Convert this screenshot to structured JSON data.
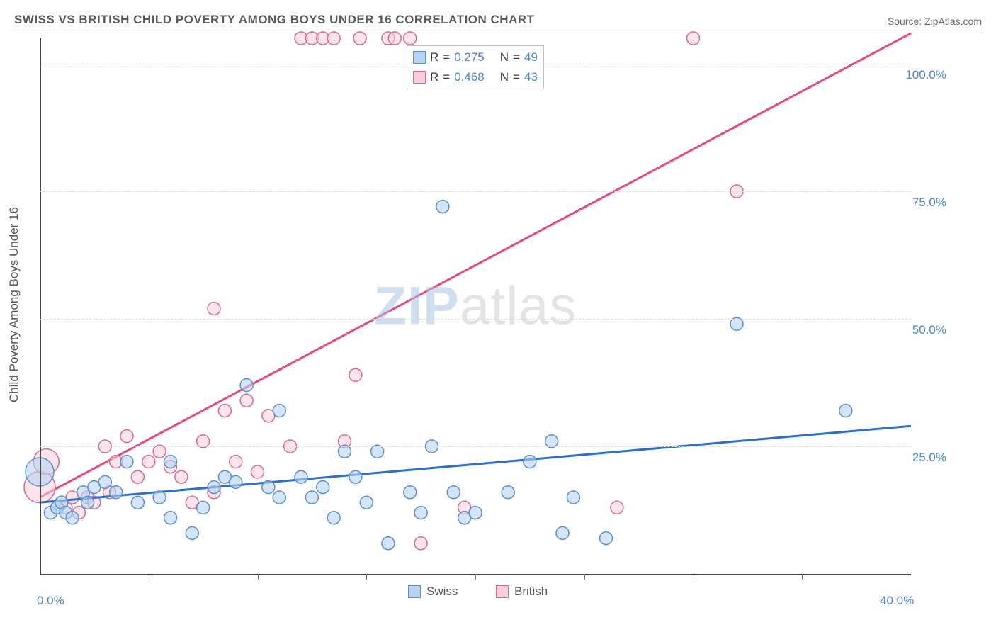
{
  "title": "SWISS VS BRITISH CHILD POVERTY AMONG BOYS UNDER 16 CORRELATION CHART",
  "source_label": "Source: ZipAtlas.com",
  "axes": {
    "ylabel": "Child Poverty Among Boys Under 16",
    "xlim": [
      0,
      40
    ],
    "ylim": [
      0,
      105
    ],
    "x_ticks_major": [
      0,
      40
    ],
    "x_ticks_minor": [
      5,
      10,
      15,
      20,
      25,
      30,
      35
    ],
    "y_ticks_major": [
      25,
      50,
      75,
      100
    ],
    "x_tick_labels": {
      "0": "0.0%",
      "40": "40.0%"
    },
    "y_tick_labels": {
      "25": "25.0%",
      "50": "50.0%",
      "75": "75.0%",
      "100": "100.0%"
    },
    "label_fontsize": 17,
    "label_color": "#4e87c4",
    "title_fontsize": 17,
    "title_color": "#555555",
    "grid_color": "#dcdcdc"
  },
  "series": {
    "swiss": {
      "label": "Swiss",
      "color_fill": "#b6d3f2",
      "color_stroke": "#5b90cb",
      "trend_color": "#2a6fd6",
      "trend_start_y": 14.0,
      "trend_end_y": 29.0,
      "marker_radius": 9,
      "marker_opacity": 0.6,
      "stats": {
        "R": "0.275",
        "N": "49"
      },
      "points": [
        {
          "x": 0.0,
          "y": 20,
          "r": 20
        },
        {
          "x": 0.5,
          "y": 12
        },
        {
          "x": 0.8,
          "y": 13
        },
        {
          "x": 1.0,
          "y": 14
        },
        {
          "x": 1.2,
          "y": 12
        },
        {
          "x": 1.5,
          "y": 11
        },
        {
          "x": 2.0,
          "y": 16
        },
        {
          "x": 2.2,
          "y": 14
        },
        {
          "x": 2.5,
          "y": 17
        },
        {
          "x": 3.0,
          "y": 18
        },
        {
          "x": 3.5,
          "y": 16
        },
        {
          "x": 4.0,
          "y": 22
        },
        {
          "x": 4.5,
          "y": 14
        },
        {
          "x": 5.5,
          "y": 15
        },
        {
          "x": 6.0,
          "y": 22
        },
        {
          "x": 6.0,
          "y": 11
        },
        {
          "x": 7.0,
          "y": 8
        },
        {
          "x": 7.5,
          "y": 13
        },
        {
          "x": 8.0,
          "y": 17
        },
        {
          "x": 8.5,
          "y": 19
        },
        {
          "x": 9.0,
          "y": 18
        },
        {
          "x": 9.5,
          "y": 37
        },
        {
          "x": 10.5,
          "y": 17
        },
        {
          "x": 11.0,
          "y": 15
        },
        {
          "x": 11.0,
          "y": 32
        },
        {
          "x": 12.0,
          "y": 19
        },
        {
          "x": 12.5,
          "y": 15
        },
        {
          "x": 13.0,
          "y": 17
        },
        {
          "x": 13.5,
          "y": 11
        },
        {
          "x": 14.0,
          "y": 24
        },
        {
          "x": 14.5,
          "y": 19
        },
        {
          "x": 15.0,
          "y": 14
        },
        {
          "x": 15.5,
          "y": 24
        },
        {
          "x": 16.0,
          "y": 6
        },
        {
          "x": 17.0,
          "y": 16
        },
        {
          "x": 17.5,
          "y": 12
        },
        {
          "x": 18.0,
          "y": 25
        },
        {
          "x": 18.5,
          "y": 72
        },
        {
          "x": 19.0,
          "y": 16
        },
        {
          "x": 19.5,
          "y": 11
        },
        {
          "x": 20.0,
          "y": 12
        },
        {
          "x": 21.5,
          "y": 16
        },
        {
          "x": 22.5,
          "y": 22
        },
        {
          "x": 23.5,
          "y": 26
        },
        {
          "x": 24.0,
          "y": 8
        },
        {
          "x": 24.5,
          "y": 15
        },
        {
          "x": 26.0,
          "y": 7
        },
        {
          "x": 32.0,
          "y": 49
        },
        {
          "x": 37.0,
          "y": 32
        }
      ]
    },
    "british": {
      "label": "British",
      "color_fill": "#f7cfda",
      "color_stroke": "#d76a8f",
      "trend_color": "#e84a7b",
      "trend_start_y": 15.0,
      "trend_end_y": 106.0,
      "marker_radius": 9,
      "marker_opacity": 0.55,
      "stats": {
        "R": "0.468",
        "N": "43"
      },
      "points": [
        {
          "x": 0.0,
          "y": 17,
          "r": 22
        },
        {
          "x": 0.3,
          "y": 22,
          "r": 18
        },
        {
          "x": 0.8,
          "y": 13
        },
        {
          "x": 1.0,
          "y": 14
        },
        {
          "x": 1.2,
          "y": 13
        },
        {
          "x": 1.5,
          "y": 15
        },
        {
          "x": 1.8,
          "y": 12
        },
        {
          "x": 2.2,
          "y": 15
        },
        {
          "x": 2.5,
          "y": 14
        },
        {
          "x": 3.0,
          "y": 25
        },
        {
          "x": 3.2,
          "y": 16
        },
        {
          "x": 3.5,
          "y": 22
        },
        {
          "x": 4.0,
          "y": 27
        },
        {
          "x": 4.5,
          "y": 19
        },
        {
          "x": 5.0,
          "y": 22
        },
        {
          "x": 5.5,
          "y": 24
        },
        {
          "x": 6.0,
          "y": 21
        },
        {
          "x": 6.5,
          "y": 19
        },
        {
          "x": 7.0,
          "y": 14
        },
        {
          "x": 7.5,
          "y": 26
        },
        {
          "x": 8.0,
          "y": 16
        },
        {
          "x": 8.0,
          "y": 52
        },
        {
          "x": 8.5,
          "y": 32
        },
        {
          "x": 9.0,
          "y": 22
        },
        {
          "x": 9.5,
          "y": 34
        },
        {
          "x": 10.0,
          "y": 20
        },
        {
          "x": 10.5,
          "y": 31
        },
        {
          "x": 11.5,
          "y": 25
        },
        {
          "x": 12.0,
          "y": 105
        },
        {
          "x": 12.5,
          "y": 105
        },
        {
          "x": 13.0,
          "y": 105
        },
        {
          "x": 13.5,
          "y": 105
        },
        {
          "x": 14.0,
          "y": 26
        },
        {
          "x": 14.5,
          "y": 39
        },
        {
          "x": 14.7,
          "y": 105
        },
        {
          "x": 16.0,
          "y": 105
        },
        {
          "x": 16.3,
          "y": 105
        },
        {
          "x": 17.0,
          "y": 105
        },
        {
          "x": 17.5,
          "y": 6
        },
        {
          "x": 19.5,
          "y": 13
        },
        {
          "x": 26.5,
          "y": 13
        },
        {
          "x": 30.0,
          "y": 105
        },
        {
          "x": 32.0,
          "y": 75
        }
      ]
    }
  },
  "legend": {
    "header_labels": {
      "r": "R",
      "n": "N",
      "eq": "="
    },
    "bottom_legend": {
      "swiss": "Swiss",
      "british": "British"
    }
  },
  "watermark": {
    "part1": "ZIP",
    "part2": "atlas"
  }
}
